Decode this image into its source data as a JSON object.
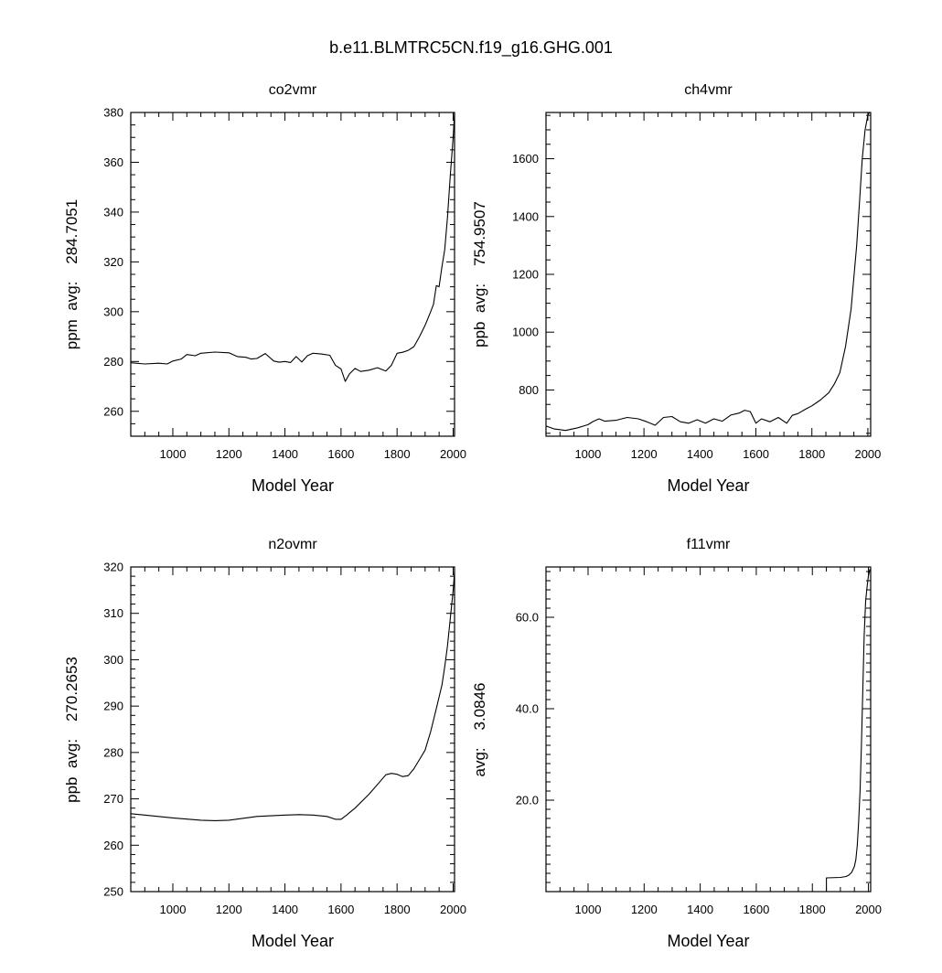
{
  "title": "b.e11.BLMTRC5CN.f19_g16.GHG.001",
  "chart_data": [
    {
      "type": "line",
      "title": "co2vmr",
      "xlabel": "Model Year",
      "ylabel": "ppm  avg:    284.7051",
      "xlim": [
        850,
        2005
      ],
      "ylim": [
        250,
        380
      ],
      "x_ticks": [
        1000,
        1200,
        1400,
        1600,
        1800,
        2000
      ],
      "x_tick_labels": [
        "1000",
        "1200",
        "1400",
        "1600",
        "1800",
        "2000"
      ],
      "y_ticks": [
        260,
        280,
        300,
        320,
        340,
        360,
        380
      ],
      "y_tick_labels": [
        "260",
        "280",
        "300",
        "320",
        "340",
        "360",
        "380"
      ],
      "x_minor_step": 50,
      "y_minor_step": 5,
      "series": [
        {
          "x": [
            850,
            900,
            950,
            980,
            1000,
            1030,
            1050,
            1080,
            1100,
            1150,
            1200,
            1230,
            1260,
            1280,
            1300,
            1330,
            1360,
            1380,
            1400,
            1420,
            1440,
            1460,
            1480,
            1500,
            1530,
            1560,
            1580,
            1600,
            1615,
            1630,
            1650,
            1670,
            1700,
            1730,
            1760,
            1780,
            1800,
            1820,
            1840,
            1860,
            1880,
            1900,
            1920,
            1930,
            1940,
            1950,
            1960,
            1970,
            1980,
            1990,
            2000,
            2005
          ],
          "y": [
            279.5,
            279.0,
            279.3,
            279.0,
            280.2,
            281.0,
            282.8,
            282.3,
            283.3,
            283.8,
            283.5,
            282.0,
            281.7,
            281.0,
            281.2,
            283.2,
            280.2,
            279.7,
            280.0,
            279.6,
            282.0,
            279.8,
            282.3,
            283.3,
            283.0,
            282.5,
            278.5,
            277.0,
            272.0,
            275.0,
            277.2,
            276.0,
            276.5,
            277.5,
            276.2,
            278.5,
            283.3,
            283.7,
            284.5,
            286.0,
            290.0,
            294.5,
            300.0,
            303.0,
            310.5,
            310.0,
            318.0,
            325.0,
            338.0,
            355.0,
            370.0,
            380.0
          ]
        }
      ]
    },
    {
      "type": "line",
      "title": "ch4vmr",
      "xlabel": "Model Year",
      "ylabel": "ppb  avg:    754.9507",
      "xlim": [
        850,
        2010
      ],
      "ylim": [
        640,
        1760
      ],
      "x_ticks": [
        1000,
        1200,
        1400,
        1600,
        1800,
        2000
      ],
      "x_tick_labels": [
        "1000",
        "1200",
        "1400",
        "1600",
        "1800",
        "2000"
      ],
      "y_ticks": [
        800,
        1000,
        1200,
        1400,
        1600
      ],
      "y_tick_labels": [
        "800",
        "1000",
        "1200",
        "1400",
        "1600"
      ],
      "x_minor_step": 50,
      "y_minor_step": 50,
      "series": [
        {
          "x": [
            850,
            880,
            920,
            960,
            1000,
            1020,
            1040,
            1060,
            1100,
            1140,
            1180,
            1210,
            1240,
            1270,
            1300,
            1330,
            1360,
            1390,
            1420,
            1450,
            1480,
            1510,
            1540,
            1560,
            1580,
            1600,
            1620,
            1650,
            1680,
            1710,
            1730,
            1750,
            1780,
            1800,
            1830,
            1860,
            1880,
            1900,
            1920,
            1940,
            1960,
            1970,
            1980,
            1990,
            2000,
            2005
          ],
          "y": [
            675,
            665,
            660,
            668,
            680,
            692,
            700,
            692,
            695,
            705,
            700,
            690,
            678,
            705,
            708,
            690,
            685,
            697,
            685,
            700,
            692,
            713,
            720,
            730,
            725,
            685,
            700,
            690,
            705,
            685,
            712,
            718,
            735,
            745,
            765,
            790,
            820,
            860,
            950,
            1080,
            1300,
            1450,
            1600,
            1700,
            1750,
            1760
          ]
        }
      ]
    },
    {
      "type": "line",
      "title": "n2ovmr",
      "xlabel": "Model Year",
      "ylabel": "ppb  avg:    270.2653",
      "xlim": [
        850,
        2005
      ],
      "ylim": [
        250,
        320
      ],
      "x_ticks": [
        1000,
        1200,
        1400,
        1600,
        1800,
        2000
      ],
      "x_tick_labels": [
        "1000",
        "1200",
        "1400",
        "1600",
        "1800",
        "2000"
      ],
      "y_ticks": [
        250,
        260,
        270,
        280,
        290,
        300,
        310,
        320
      ],
      "y_tick_labels": [
        "250",
        "260",
        "270",
        "280",
        "290",
        "300",
        "310",
        "320"
      ],
      "x_minor_step": 50,
      "y_minor_step": 2,
      "series": [
        {
          "x": [
            850,
            900,
            1000,
            1100,
            1150,
            1200,
            1300,
            1400,
            1450,
            1500,
            1550,
            1580,
            1600,
            1620,
            1650,
            1700,
            1740,
            1760,
            1780,
            1800,
            1820,
            1840,
            1860,
            1880,
            1900,
            1920,
            1940,
            1960,
            1970,
            1980,
            1990,
            2000,
            2005
          ],
          "y": [
            266.8,
            266.5,
            265.9,
            265.4,
            265.3,
            265.4,
            266.2,
            266.5,
            266.6,
            266.5,
            266.2,
            265.6,
            265.6,
            266.5,
            268.0,
            271.0,
            273.8,
            275.2,
            275.5,
            275.3,
            274.8,
            275.0,
            276.5,
            278.5,
            280.5,
            284.5,
            289.5,
            294.5,
            298.5,
            303.0,
            309.0,
            315.0,
            319.0
          ]
        }
      ]
    },
    {
      "type": "line",
      "title": "f11vmr",
      "xlabel": "Model Year",
      "ylabel": "avg:    3.0846",
      "xlim": [
        850,
        2008
      ],
      "ylim": [
        0,
        71
      ],
      "x_ticks": [
        1000,
        1200,
        1400,
        1600,
        1800,
        2000
      ],
      "x_tick_labels": [
        "1000",
        "1200",
        "1400",
        "1600",
        "1800",
        "2000"
      ],
      "y_ticks": [
        20,
        40,
        60
      ],
      "y_tick_labels": [
        "20.0",
        "40.0",
        "60.0"
      ],
      "x_minor_step": 50,
      "y_minor_step": 2,
      "series": [
        {
          "x": [
            1850,
            1850,
            1900,
            1920,
            1930,
            1940,
            1950,
            1955,
            1960,
            1965,
            1970,
            1975,
            1980,
            1985,
            1990,
            1995,
            2000,
            2005
          ],
          "y": [
            0,
            3.0,
            3.1,
            3.3,
            3.6,
            4.2,
            5.5,
            7.0,
            10.0,
            15.0,
            22.0,
            32.0,
            44.0,
            56.0,
            63.5,
            66.5,
            69.0,
            70.5
          ]
        }
      ]
    }
  ]
}
